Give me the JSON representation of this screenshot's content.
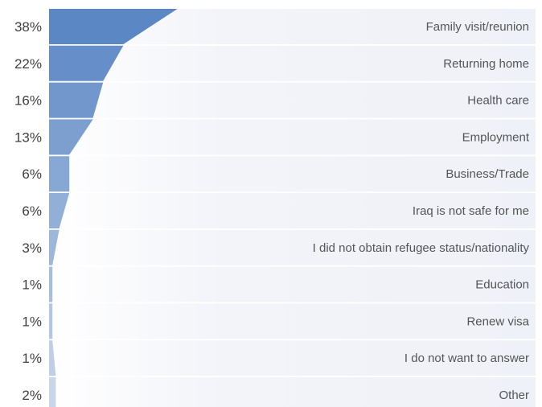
{
  "chart_data": {
    "type": "bar",
    "orientation": "horizontal",
    "categories": [
      "Family visit/reunion",
      "Returning home",
      "Health care",
      "Employment",
      "Business/Trade",
      "Iraq is not safe for me",
      "I did not obtain refugee status/nationality",
      "Education",
      "Renew visa",
      "I do not want to answer",
      "Other"
    ],
    "values": [
      38,
      22,
      16,
      13,
      6,
      6,
      3,
      1,
      1,
      1,
      2
    ],
    "value_labels": [
      "38%",
      "22%",
      "16%",
      "13%",
      "6%",
      "6%",
      "3%",
      "1%",
      "1%",
      "1%",
      "2%"
    ],
    "unit": "%",
    "title": "",
    "xlabel": "",
    "ylabel": "",
    "grid": false,
    "legend": "none",
    "colors": {
      "bar_dark": "#5b87c5",
      "bar_light": "#c9d6ea",
      "row_background": "#eff1f8",
      "label_text": "#555555",
      "value_text": "#404040"
    }
  }
}
